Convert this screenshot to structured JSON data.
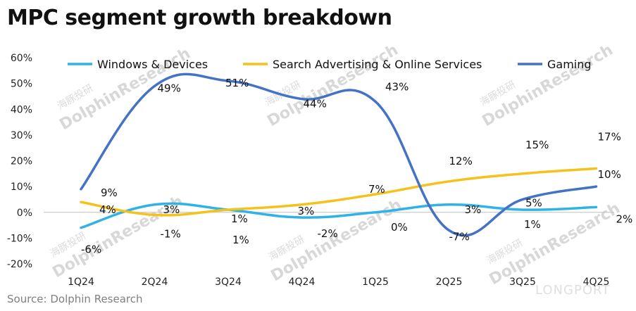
{
  "title": "MPC segment growth breakdown",
  "source": "Source: Dolphin Research",
  "watermark": {
    "cn": "海豚投研",
    "en": "DolphinResearch",
    "brand": "LONGPORT"
  },
  "chart_data": {
    "type": "line",
    "categories": [
      "1Q24",
      "2Q24",
      "3Q24",
      "4Q24",
      "1Q25",
      "2Q25",
      "3Q25",
      "4Q25"
    ],
    "ylim": [
      -20,
      60
    ],
    "yticks": [
      -20,
      -10,
      0,
      10,
      20,
      30,
      40,
      50,
      60
    ],
    "ytick_labels": [
      "-20%",
      "-10%",
      "0%",
      "10%",
      "20%",
      "30%",
      "40%",
      "50%",
      "60%"
    ],
    "grid": false,
    "legend_position": "top",
    "series": [
      {
        "name": "Windows & Devices",
        "color": "#2fb3e6",
        "values": [
          -6,
          3,
          1,
          -2,
          0,
          3,
          1,
          2
        ],
        "labels": [
          "-6%",
          "3%",
          "1%",
          "-2%",
          "0%",
          "3%",
          "1%",
          "2%"
        ]
      },
      {
        "name": "Search Advertising & Online Services",
        "color": "#f5c21b",
        "values": [
          4,
          -1,
          1,
          3,
          7,
          12,
          15,
          17
        ],
        "labels": [
          "4%",
          "-1%",
          "1%",
          "3%",
          "7%",
          "12%",
          "15%",
          "17%"
        ]
      },
      {
        "name": "Gaming",
        "color": "#4472c4",
        "values": [
          9,
          49,
          51,
          44,
          43,
          -7,
          5,
          10
        ],
        "labels": [
          "9%",
          "49%",
          "51%",
          "44%",
          "43%",
          "-7%",
          "5%",
          "10%"
        ]
      }
    ]
  }
}
